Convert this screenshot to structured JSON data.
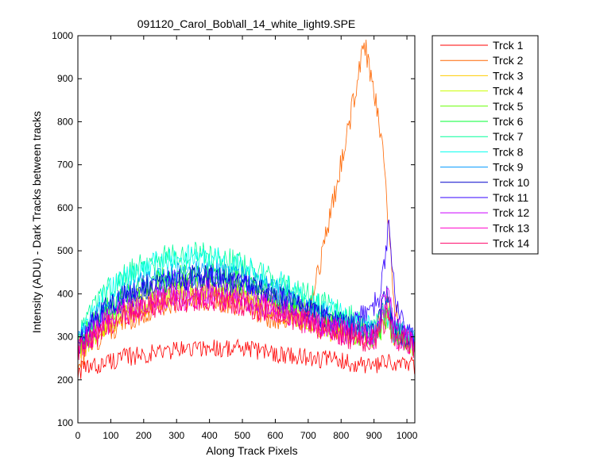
{
  "chart_data": {
    "type": "line",
    "title": "091120_Carol_Bob\\all_14_white_light9.SPE",
    "xlabel": "Along Track Pixels",
    "ylabel": "Intensity (ADU) - Dark Tracks between tracks",
    "xlim": [
      0,
      1024
    ],
    "ylim": [
      100,
      1000
    ],
    "xticks": [
      "0",
      "100",
      "200",
      "300",
      "400",
      "500",
      "600",
      "700",
      "800",
      "900",
      "1000"
    ],
    "yticks": [
      "100",
      "200",
      "300",
      "400",
      "500",
      "600",
      "700",
      "800",
      "900",
      "1000"
    ],
    "grid": false,
    "legend_position": "outside-right",
    "series": [
      {
        "name": "Trck 1",
        "color": "#ff0000",
        "x": [
          0,
          50,
          100,
          200,
          300,
          400,
          500,
          600,
          700,
          800,
          900,
          950,
          1024
        ],
        "y": [
          220,
          230,
          245,
          260,
          270,
          275,
          272,
          262,
          252,
          245,
          230,
          240,
          230
        ]
      },
      {
        "name": "Trck 2",
        "color": "#ff6600",
        "x": [
          0,
          50,
          100,
          200,
          300,
          400,
          500,
          600,
          700,
          750,
          800,
          850,
          870,
          900,
          930,
          960,
          980,
          1024
        ],
        "y": [
          245,
          285,
          320,
          360,
          385,
          390,
          372,
          345,
          360,
          520,
          700,
          900,
          985,
          880,
          700,
          390,
          300,
          280
        ]
      },
      {
        "name": "Trck 3",
        "color": "#ffcc00",
        "x": [
          0,
          50,
          100,
          200,
          300,
          400,
          500,
          600,
          700,
          800,
          900,
          940,
          960,
          1024
        ],
        "y": [
          265,
          300,
          335,
          375,
          400,
          405,
          390,
          365,
          335,
          310,
          300,
          375,
          310,
          280
        ]
      },
      {
        "name": "Trck 4",
        "color": "#ccff00",
        "x": [
          0,
          50,
          100,
          200,
          300,
          400,
          500,
          600,
          700,
          800,
          900,
          940,
          960,
          1024
        ],
        "y": [
          270,
          305,
          340,
          380,
          405,
          410,
          395,
          370,
          340,
          315,
          300,
          360,
          310,
          282
        ]
      },
      {
        "name": "Trck 5",
        "color": "#66ff00",
        "x": [
          0,
          50,
          100,
          200,
          300,
          400,
          500,
          600,
          700,
          800,
          900,
          940,
          960,
          1024
        ],
        "y": [
          275,
          320,
          360,
          410,
          430,
          435,
          415,
          385,
          355,
          320,
          295,
          345,
          305,
          280
        ]
      },
      {
        "name": "Trck 6",
        "color": "#00ff33",
        "x": [
          0,
          50,
          100,
          200,
          300,
          400,
          500,
          600,
          700,
          800,
          900,
          940,
          960,
          1024
        ],
        "y": [
          280,
          330,
          370,
          420,
          445,
          450,
          430,
          400,
          365,
          330,
          300,
          350,
          305,
          282
        ]
      },
      {
        "name": "Trck 7",
        "color": "#00ff99",
        "x": [
          0,
          50,
          100,
          200,
          300,
          400,
          500,
          600,
          700,
          800,
          900,
          940,
          960,
          1024
        ],
        "y": [
          300,
          370,
          420,
          470,
          495,
          490,
          470,
          435,
          395,
          355,
          320,
          360,
          315,
          290
        ]
      },
      {
        "name": "Trck 8",
        "color": "#00ffee",
        "x": [
          0,
          50,
          100,
          200,
          300,
          400,
          500,
          600,
          700,
          800,
          900,
          940,
          960,
          1024
        ],
        "y": [
          295,
          360,
          410,
          460,
          485,
          485,
          465,
          430,
          390,
          350,
          315,
          355,
          315,
          288
        ]
      },
      {
        "name": "Trck 9",
        "color": "#0099ff",
        "x": [
          0,
          50,
          100,
          200,
          300,
          400,
          500,
          600,
          700,
          800,
          900,
          940,
          960,
          1024
        ],
        "y": [
          290,
          340,
          380,
          425,
          445,
          450,
          435,
          405,
          370,
          335,
          310,
          380,
          320,
          290
        ]
      },
      {
        "name": "Trck 10",
        "color": "#0000cc",
        "x": [
          0,
          50,
          100,
          200,
          300,
          400,
          500,
          600,
          700,
          800,
          900,
          940,
          960,
          1024
        ],
        "y": [
          285,
          335,
          375,
          415,
          435,
          440,
          425,
          395,
          360,
          330,
          310,
          400,
          320,
          288
        ]
      },
      {
        "name": "Trck 11",
        "color": "#3300ff",
        "x": [
          0,
          50,
          100,
          200,
          300,
          400,
          500,
          600,
          700,
          800,
          880,
          920,
          945,
          965,
          1000,
          1024
        ],
        "y": [
          285,
          330,
          370,
          410,
          430,
          435,
          420,
          390,
          360,
          330,
          355,
          400,
          560,
          390,
          310,
          290
        ]
      },
      {
        "name": "Trck 12",
        "color": "#cc00ff",
        "x": [
          0,
          50,
          100,
          200,
          300,
          400,
          500,
          600,
          700,
          800,
          900,
          940,
          960,
          1024
        ],
        "y": [
          275,
          310,
          345,
          380,
          400,
          405,
          390,
          365,
          340,
          315,
          300,
          420,
          330,
          282
        ]
      },
      {
        "name": "Trck 13",
        "color": "#ff00cc",
        "x": [
          0,
          50,
          100,
          200,
          300,
          400,
          500,
          600,
          700,
          800,
          900,
          940,
          960,
          1024
        ],
        "y": [
          275,
          305,
          340,
          370,
          390,
          392,
          380,
          360,
          335,
          310,
          295,
          370,
          305,
          280
        ]
      },
      {
        "name": "Trck 14",
        "color": "#ff0066",
        "x": [
          0,
          50,
          100,
          200,
          300,
          400,
          500,
          600,
          700,
          800,
          900,
          940,
          960,
          1024
        ],
        "y": [
          270,
          300,
          335,
          365,
          385,
          390,
          375,
          355,
          330,
          305,
          290,
          340,
          300,
          278
        ]
      }
    ]
  }
}
